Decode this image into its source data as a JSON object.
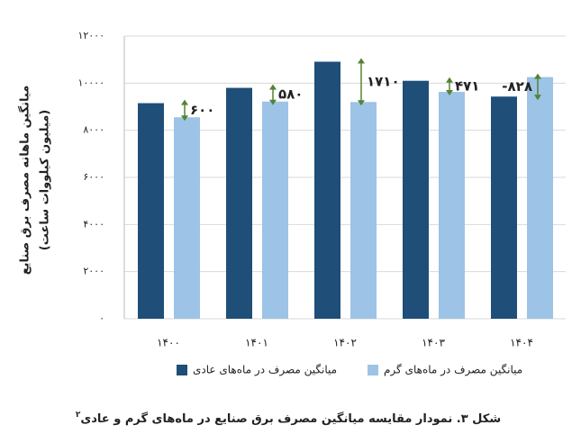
{
  "chart_data": {
    "type": "bar",
    "title": "شکل ۳. نمودار مقایسه میانگین مصرف برق صنایع در ماه‌های گرم و عادی",
    "title_note": "۲",
    "y_label": [
      "میانگین ماهانه مصرف برق صنایع",
      "(میلیون کیلووات ساعت)"
    ],
    "categories": [
      "۱۴۰۰",
      "۱۴۰۱",
      "۱۴۰۲",
      "۱۴۰۳",
      "۱۴۰۴"
    ],
    "series": [
      {
        "name": "میانگین مصرف در ماه‌های عادی",
        "color": "#1f4e79",
        "values": [
          9150,
          9800,
          10910,
          10100,
          9430
        ]
      },
      {
        "name": "میانگین مصرف در ماه‌های گرم",
        "color": "#9dc3e6",
        "values": [
          8550,
          9220,
          9200,
          9629,
          10258
        ]
      }
    ],
    "annotations": [
      "۶۰۰",
      "۵۸۰",
      "۱۷۱۰",
      "۴۷۱",
      "-۸۲۸"
    ],
    "annotation_color": "#548235",
    "ylim": [
      0,
      12000
    ],
    "yticks": [
      {
        "value": 0,
        "label": "۰"
      },
      {
        "value": 2000,
        "label": "۲۰۰۰"
      },
      {
        "value": 4000,
        "label": "۴۰۰۰"
      },
      {
        "value": 6000,
        "label": "۶۰۰۰"
      },
      {
        "value": 8000,
        "label": "۸۰۰۰"
      },
      {
        "value": 10000,
        "label": "۱۰۰۰۰"
      },
      {
        "value": 12000,
        "label": "۱۲۰۰۰"
      }
    ],
    "grid": true
  }
}
